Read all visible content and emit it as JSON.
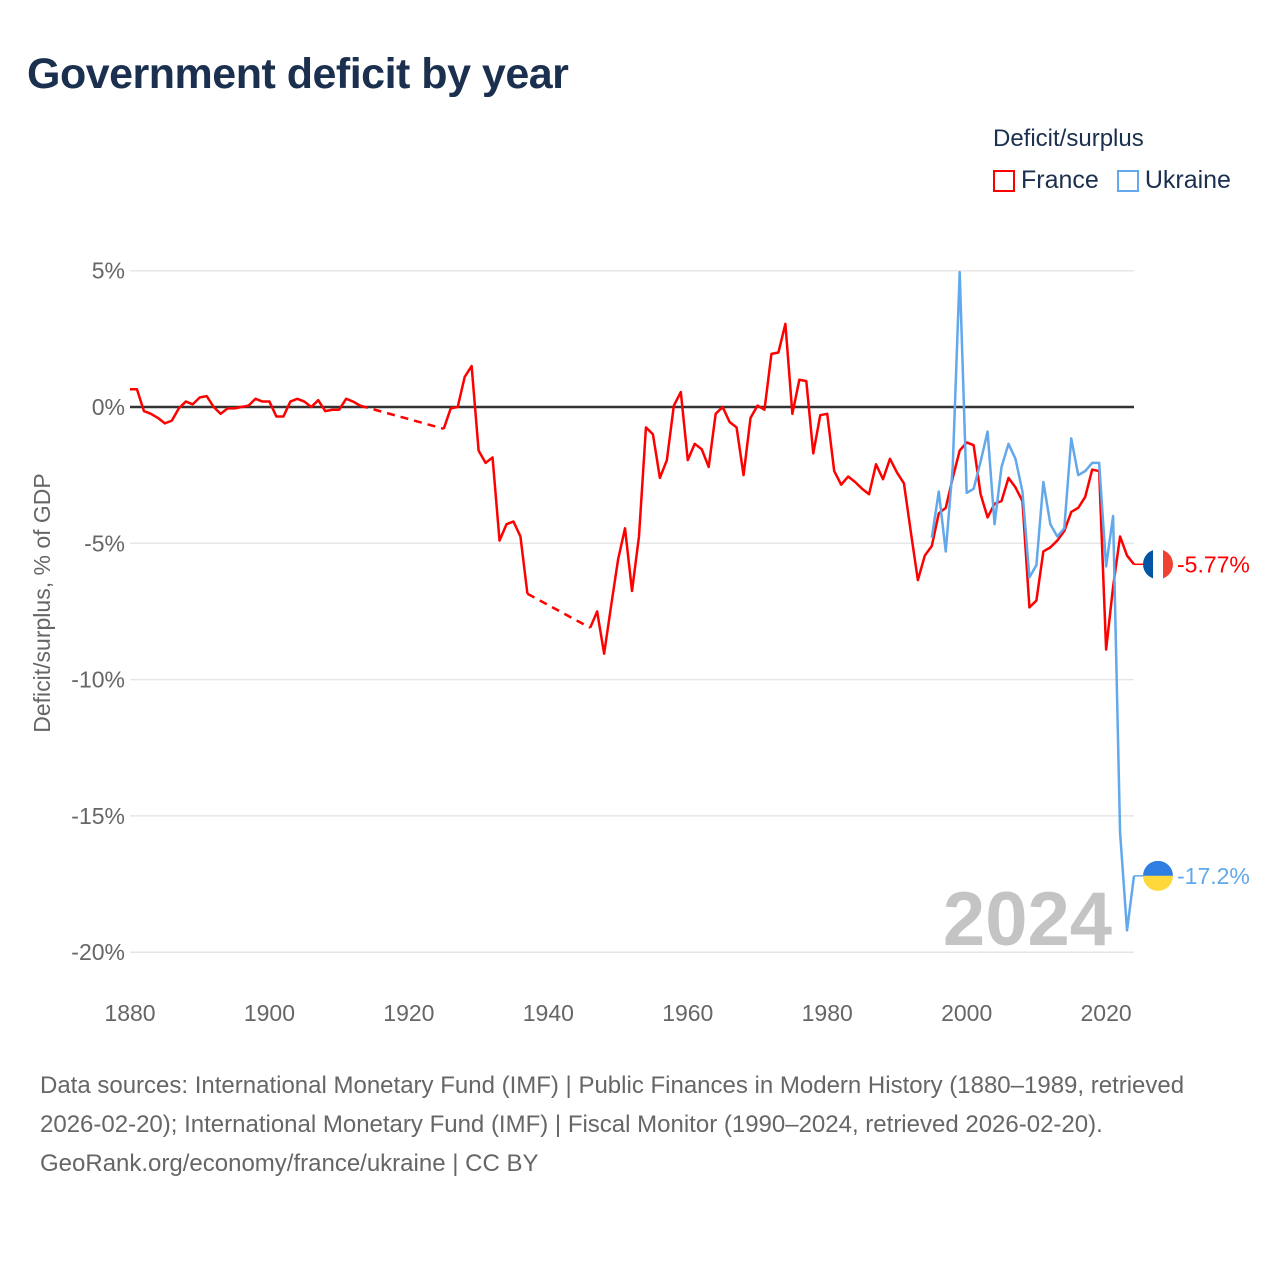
{
  "chart_data": {
    "type": "line",
    "title": "Government deficit by year",
    "ylabel": "Deficit/surplus, % of GDP",
    "xlabel": "",
    "xlim": [
      1880,
      2024
    ],
    "ylim": [
      -20,
      5
    ],
    "x_ticks": [
      1880,
      1900,
      1920,
      1940,
      1960,
      1980,
      2000,
      2020
    ],
    "x_tick_labels": [
      "1880",
      "1900",
      "1920",
      "1940",
      "1960",
      "1980",
      "2000",
      "2020"
    ],
    "y_ticks": [
      5,
      0,
      -5,
      -10,
      -15,
      -20
    ],
    "y_tick_labels": [
      "5%",
      "0%",
      "-5%",
      "-10%",
      "-15%",
      "-20%"
    ],
    "grid": true,
    "legend_title": "Deficit/surplus",
    "legend_position": "top-right",
    "year_watermark": "2024",
    "series": [
      {
        "name": "France",
        "color": "#ff0000",
        "end_label": "-5.77%",
        "points": [
          [
            1880,
            0.65
          ],
          [
            1881,
            0.65
          ],
          [
            1882,
            -0.15
          ],
          [
            1883,
            -0.25
          ],
          [
            1884,
            -0.4
          ],
          [
            1885,
            -0.6
          ],
          [
            1886,
            -0.5
          ],
          [
            1887,
            -0.05
          ],
          [
            1888,
            0.2
          ],
          [
            1889,
            0.1
          ],
          [
            1890,
            0.35
          ],
          [
            1891,
            0.4
          ],
          [
            1892,
            0.0
          ],
          [
            1893,
            -0.25
          ],
          [
            1894,
            -0.05
          ],
          [
            1895,
            -0.05
          ],
          [
            1896,
            0.0
          ],
          [
            1897,
            0.05
          ],
          [
            1898,
            0.3
          ],
          [
            1899,
            0.2
          ],
          [
            1900,
            0.2
          ],
          [
            1901,
            -0.35
          ],
          [
            1902,
            -0.35
          ],
          [
            1903,
            0.2
          ],
          [
            1904,
            0.3
          ],
          [
            1905,
            0.2
          ],
          [
            1906,
            0.0
          ],
          [
            1907,
            0.25
          ],
          [
            1908,
            -0.15
          ],
          [
            1909,
            -0.1
          ],
          [
            1910,
            -0.1
          ],
          [
            1911,
            0.3
          ],
          [
            1912,
            0.2
          ],
          [
            1913,
            0.05
          ],
          [
            1925,
            -0.8
          ],
          [
            1926,
            -0.05
          ],
          [
            1927,
            0.0
          ],
          [
            1928,
            1.1
          ],
          [
            1929,
            1.5
          ],
          [
            1930,
            -1.6
          ],
          [
            1931,
            -2.05
          ],
          [
            1932,
            -1.85
          ],
          [
            1933,
            -4.9
          ],
          [
            1934,
            -4.3
          ],
          [
            1935,
            -4.2
          ],
          [
            1936,
            -4.75
          ],
          [
            1937,
            -6.85
          ],
          [
            1946,
            -8.1
          ],
          [
            1947,
            -7.5
          ],
          [
            1948,
            -9.05
          ],
          [
            1949,
            -7.3
          ],
          [
            1950,
            -5.6
          ],
          [
            1951,
            -4.45
          ],
          [
            1952,
            -6.75
          ],
          [
            1953,
            -4.75
          ],
          [
            1954,
            -0.75
          ],
          [
            1955,
            -1.0
          ],
          [
            1956,
            -2.6
          ],
          [
            1957,
            -1.95
          ],
          [
            1958,
            0.05
          ],
          [
            1959,
            0.55
          ],
          [
            1960,
            -1.95
          ],
          [
            1961,
            -1.35
          ],
          [
            1962,
            -1.55
          ],
          [
            1963,
            -2.2
          ],
          [
            1964,
            -0.25
          ],
          [
            1965,
            0.0
          ],
          [
            1966,
            -0.55
          ],
          [
            1967,
            -0.75
          ],
          [
            1968,
            -2.5
          ],
          [
            1969,
            -0.4
          ],
          [
            1970,
            0.05
          ],
          [
            1971,
            -0.1
          ],
          [
            1972,
            1.95
          ],
          [
            1973,
            2.0
          ],
          [
            1974,
            3.05
          ],
          [
            1975,
            -0.25
          ],
          [
            1976,
            1.0
          ],
          [
            1977,
            0.95
          ],
          [
            1978,
            -1.7
          ],
          [
            1979,
            -0.3
          ],
          [
            1980,
            -0.25
          ],
          [
            1981,
            -2.35
          ],
          [
            1982,
            -2.85
          ],
          [
            1983,
            -2.55
          ],
          [
            1984,
            -2.75
          ],
          [
            1985,
            -3.0
          ],
          [
            1986,
            -3.2
          ],
          [
            1987,
            -2.1
          ],
          [
            1988,
            -2.65
          ],
          [
            1989,
            -1.9
          ],
          [
            1990,
            -2.4
          ],
          [
            1991,
            -2.8
          ],
          [
            1992,
            -4.6
          ],
          [
            1993,
            -6.35
          ],
          [
            1994,
            -5.45
          ],
          [
            1995,
            -5.1
          ],
          [
            1996,
            -3.9
          ],
          [
            1997,
            -3.7
          ],
          [
            1998,
            -2.6
          ],
          [
            1999,
            -1.6
          ],
          [
            2000,
            -1.3
          ],
          [
            2001,
            -1.4
          ],
          [
            2002,
            -3.2
          ],
          [
            2003,
            -4.05
          ],
          [
            2004,
            -3.55
          ],
          [
            2005,
            -3.45
          ],
          [
            2006,
            -2.6
          ],
          [
            2007,
            -2.95
          ],
          [
            2008,
            -3.45
          ],
          [
            2009,
            -7.35
          ],
          [
            2010,
            -7.1
          ],
          [
            2011,
            -5.3
          ],
          [
            2012,
            -5.15
          ],
          [
            2013,
            -4.9
          ],
          [
            2014,
            -4.55
          ],
          [
            2015,
            -3.85
          ],
          [
            2016,
            -3.7
          ],
          [
            2017,
            -3.3
          ],
          [
            2018,
            -2.3
          ],
          [
            2019,
            -2.35
          ],
          [
            2020,
            -8.9
          ],
          [
            2021,
            -6.6
          ],
          [
            2022,
            -4.75
          ],
          [
            2023,
            -5.45
          ],
          [
            2024,
            -5.77
          ]
        ]
      },
      {
        "name": "Ukraine",
        "color": "#62a8ea",
        "end_label": "-17.2%",
        "points": [
          [
            1995,
            -4.8
          ],
          [
            1996,
            -3.1
          ],
          [
            1997,
            -5.3
          ],
          [
            1998,
            -2.2
          ],
          [
            1999,
            4.95
          ],
          [
            2000,
            -3.15
          ],
          [
            2001,
            -3.0
          ],
          [
            2002,
            -2.0
          ],
          [
            2003,
            -0.9
          ],
          [
            2004,
            -4.3
          ],
          [
            2005,
            -2.2
          ],
          [
            2006,
            -1.35
          ],
          [
            2007,
            -1.9
          ],
          [
            2008,
            -3.1
          ],
          [
            2009,
            -6.25
          ],
          [
            2010,
            -5.8
          ],
          [
            2011,
            -2.75
          ],
          [
            2012,
            -4.3
          ],
          [
            2013,
            -4.75
          ],
          [
            2014,
            -4.45
          ],
          [
            2015,
            -1.15
          ],
          [
            2016,
            -2.5
          ],
          [
            2017,
            -2.35
          ],
          [
            2018,
            -2.05
          ],
          [
            2019,
            -2.05
          ],
          [
            2020,
            -5.85
          ],
          [
            2021,
            -4.0
          ],
          [
            2022,
            -15.6
          ],
          [
            2023,
            -19.2
          ],
          [
            2024,
            -17.2
          ]
        ]
      }
    ]
  },
  "footer": {
    "sources": "Data sources: International Monetary Fund (IMF) | Public Finances in Modern History (1880–1989, retrieved 2026-02-20); International Monetary Fund (IMF) | Fiscal Monitor (1990–2024, retrieved 2026-02-20).",
    "credit": "GeoRank.org/economy/france/ukraine | CC BY"
  }
}
